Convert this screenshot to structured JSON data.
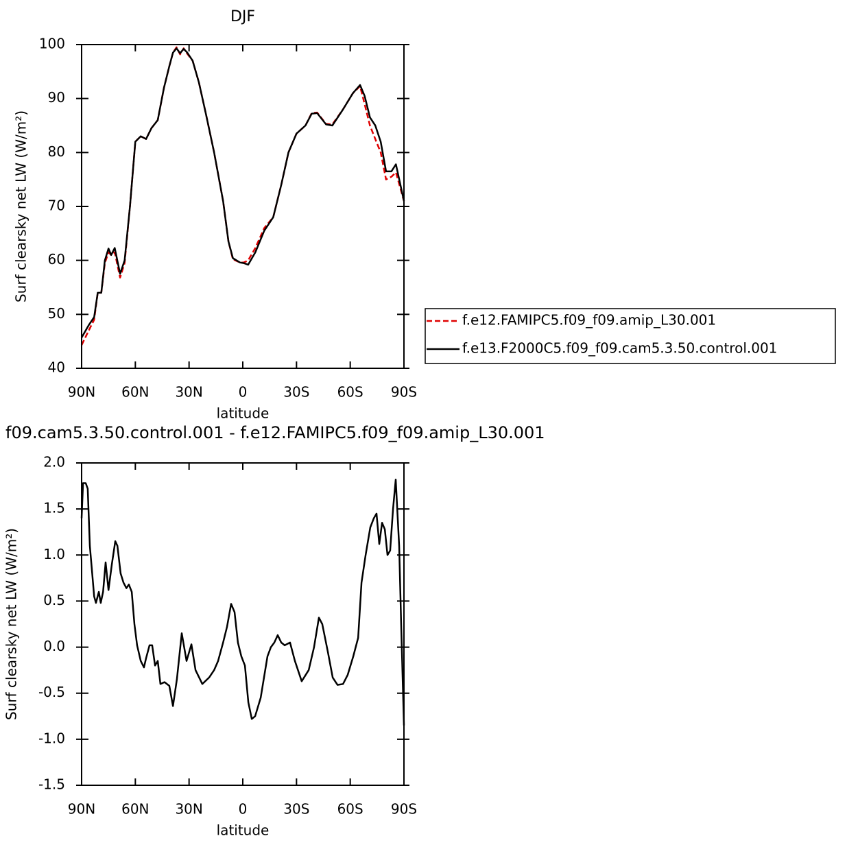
{
  "chart_data": [
    {
      "type": "line",
      "title": "DJF",
      "xlabel": "latitude",
      "ylabel": "Surf clearsky net LW (W/m²)",
      "legend": "right",
      "xlim": [
        90,
        -90
      ],
      "xticks": [
        {
          "value": 90,
          "label": "90N"
        },
        {
          "value": 60,
          "label": "60N"
        },
        {
          "value": 30,
          "label": "30N"
        },
        0,
        {
          "value": -30,
          "label": "30S"
        },
        {
          "value": -60,
          "label": "60S"
        },
        {
          "value": -90,
          "label": "90S"
        }
      ],
      "ylim": [
        40,
        100
      ],
      "yticks": [
        40,
        50,
        60,
        70,
        80,
        90,
        100
      ],
      "x": [
        90,
        86,
        83,
        81,
        79,
        77,
        75,
        73.5,
        71.5,
        68.5,
        66,
        63,
        60,
        57,
        54,
        51,
        47.5,
        44,
        41,
        39,
        37,
        35,
        33,
        31,
        28,
        24.5,
        20.5,
        16,
        11,
        8,
        5.5,
        1.5,
        -0.5,
        -3,
        -7,
        -12,
        -17,
        -21.5,
        -25.5,
        -30,
        -35,
        -38.5,
        -41.5,
        -46.5,
        -50,
        -56,
        -61.5,
        -65.5,
        -68,
        -71,
        -74,
        -77,
        -80,
        -83,
        -85.5,
        -90
      ],
      "series": [
        {
          "name": "f.e12.FAMIPC5.f09_f09.amip_L30.001",
          "color": "#e00000",
          "dash": true,
          "values": [
            44.3,
            47,
            49,
            54,
            54,
            59.5,
            61.5,
            61,
            61.5,
            56.8,
            59.5,
            70,
            82,
            83,
            82.5,
            84.5,
            86,
            92,
            96,
            98.5,
            99.5,
            98.2,
            99.3,
            98.3,
            97,
            93,
            87,
            80,
            71,
            63.5,
            60.2,
            59.6,
            59.6,
            60,
            62.3,
            66,
            68,
            74,
            80,
            83.5,
            85,
            87.3,
            87.4,
            85.3,
            85.2,
            88,
            91,
            92.3,
            89,
            85,
            82.5,
            80,
            75,
            75.5,
            76.3,
            71
          ]
        },
        {
          "name": "f.e13.F2000C5.f09_f09.cam5.3.50.control.001",
          "color": "#000000",
          "dash": false,
          "values": [
            45.7,
            48,
            49.5,
            54,
            54,
            60,
            62.2,
            61,
            62.3,
            57.5,
            60,
            70,
            82,
            83,
            82.5,
            84.5,
            86,
            92,
            96,
            98.5,
            99.3,
            98.4,
            99.2,
            98.5,
            97,
            93,
            87,
            80,
            71,
            63.5,
            60.4,
            59.6,
            59.5,
            59.2,
            61.5,
            65.5,
            68,
            74,
            80,
            83.5,
            85,
            87.2,
            87.3,
            85.2,
            85,
            88,
            91,
            92.5,
            90.5,
            86.5,
            85,
            82,
            76.5,
            76.5,
            77.8,
            71
          ]
        }
      ]
    },
    {
      "type": "line",
      "title": "f09.cam5.3.50.control.001 - f.e12.FAMIPC5.f09_f09.amip_L30.001",
      "xlabel": "latitude",
      "ylabel": "Surf clearsky net LW (W/m²)",
      "xlim": [
        90,
        -90
      ],
      "xticks": [
        {
          "value": 90,
          "label": "90N"
        },
        {
          "value": 60,
          "label": "60N"
        },
        {
          "value": 30,
          "label": "30N"
        },
        0,
        {
          "value": -30,
          "label": "30S"
        },
        {
          "value": -60,
          "label": "60S"
        },
        {
          "value": -90,
          "label": "90S"
        }
      ],
      "ylim": [
        -1.5,
        2
      ],
      "yticks": [
        -1.5,
        {
          "value": -1,
          "label": "-1.0"
        },
        -0.5,
        {
          "value": 0,
          "label": "0.0"
        },
        0.5,
        {
          "value": 1,
          "label": "1.0"
        },
        1.5,
        {
          "value": 2,
          "label": "2.0"
        }
      ],
      "x": [
        90,
        89.2,
        87.7,
        86.6,
        85.4,
        83,
        82,
        80.4,
        79.3,
        78,
        76.6,
        75,
        73.1,
        71.2,
        70,
        68.2,
        66.6,
        65,
        63.6,
        62,
        60.5,
        59,
        57,
        55.2,
        54,
        52.1,
        50.6,
        49,
        47.5,
        46,
        43.7,
        41,
        39,
        36.8,
        34.1,
        31.4,
        28.7,
        26.4,
        22.6,
        18.8,
        16,
        13.8,
        11,
        8.8,
        6.5,
        4.6,
        2.7,
        0.8,
        -1.2,
        -3.1,
        -5,
        -6.9,
        -10,
        -13.8,
        -15.7,
        -17.6,
        -19.5,
        -21.5,
        -23.4,
        -26.4,
        -29.1,
        -32.9,
        -36.8,
        -39.8,
        -42.5,
        -44.4,
        -47.5,
        -50.2,
        -52.9,
        -56,
        -58.6,
        -61.7,
        -64.4,
        -66.3,
        -68.6,
        -71.2,
        -73.2,
        -74.7,
        -76.2,
        -77.8,
        -79.3,
        -80.8,
        -82.3,
        -83.9,
        -85.4,
        -87.3,
        -88.5,
        -90
      ],
      "series": [
        {
          "color": "#000000",
          "dash": false,
          "values": [
            1.4,
            1.78,
            1.78,
            1.72,
            1.1,
            0.55,
            0.48,
            0.6,
            0.48,
            0.6,
            0.92,
            0.62,
            0.9,
            1.15,
            1.1,
            0.8,
            0.7,
            0.64,
            0.68,
            0.6,
            0.25,
            0.02,
            -0.15,
            -0.22,
            -0.12,
            0.02,
            0.02,
            -0.2,
            -0.15,
            -0.4,
            -0.38,
            -0.42,
            -0.64,
            -0.35,
            0.15,
            -0.15,
            0.03,
            -0.25,
            -0.4,
            -0.33,
            -0.25,
            -0.15,
            0.05,
            0.22,
            0.47,
            0.38,
            0.05,
            -0.1,
            -0.2,
            -0.6,
            -0.78,
            -0.75,
            -0.55,
            -0.1,
            0,
            0.05,
            0.13,
            0.05,
            0.02,
            0.05,
            -0.15,
            -0.37,
            -0.25,
            0,
            0.32,
            0.25,
            -0.05,
            -0.33,
            -0.41,
            -0.4,
            -0.3,
            -0.1,
            0.1,
            0.7,
            1.0,
            1.3,
            1.4,
            1.45,
            1.12,
            1.35,
            1.28,
            1.0,
            1.05,
            1.5,
            1.82,
            1.1,
            0.2,
            -0.85
          ]
        }
      ]
    }
  ]
}
